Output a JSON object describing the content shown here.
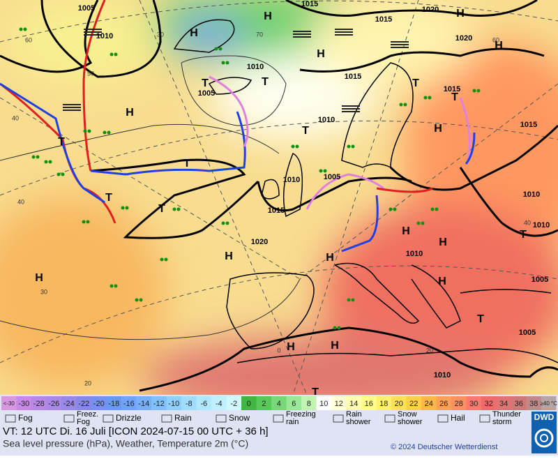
{
  "map": {
    "isobar_labels": [
      "1005",
      "1010",
      "1015",
      "1015",
      "1020",
      "1020",
      "1010",
      "1015",
      "1005",
      "1015",
      "1010",
      "1015",
      "1010",
      "1005",
      "1015",
      "1010",
      "1010",
      "1020",
      "1010",
      "1005",
      "1005",
      "1010"
    ],
    "pressure_centers": [
      "H",
      "H",
      "H",
      "H",
      "H",
      "H",
      "H",
      "H",
      "H",
      "H",
      "H",
      "H",
      "H",
      "H",
      "H",
      "T",
      "T",
      "T",
      "T",
      "T",
      "T",
      "T",
      "T",
      "T",
      "T",
      "T",
      "T"
    ],
    "isotherm_labels": [
      "60",
      "50",
      "40",
      "30",
      "20",
      "0",
      "20",
      "30",
      "40",
      "60",
      "40",
      "70"
    ]
  },
  "legend": {
    "scale": [
      {
        "label": "<-30",
        "color": "#d898e0"
      },
      {
        "label": "-30",
        "color": "#c888e8"
      },
      {
        "label": "-28",
        "color": "#b888e8"
      },
      {
        "label": "-26",
        "color": "#a888e8"
      },
      {
        "label": "-24",
        "color": "#9888e8"
      },
      {
        "label": "-22",
        "color": "#8888e8"
      },
      {
        "label": "-20",
        "color": "#7890f0"
      },
      {
        "label": "-18",
        "color": "#6898f0"
      },
      {
        "label": "-16",
        "color": "#70a4f8"
      },
      {
        "label": "-14",
        "color": "#78b0f8"
      },
      {
        "label": "-12",
        "color": "#80c0ff"
      },
      {
        "label": "-10",
        "color": "#90d0ff"
      },
      {
        "label": "-8",
        "color": "#a0dcff"
      },
      {
        "label": "-6",
        "color": "#b0e8ff"
      },
      {
        "label": "-4",
        "color": "#c0f0ff"
      },
      {
        "label": "-2",
        "color": "#d0f8ff"
      },
      {
        "label": "0",
        "color": "#40b840"
      },
      {
        "label": "2",
        "color": "#58c858"
      },
      {
        "label": "4",
        "color": "#78d878"
      },
      {
        "label": "6",
        "color": "#98e898"
      },
      {
        "label": "8",
        "color": "#c0f4b0"
      },
      {
        "label": "10",
        "color": "#ffffff"
      },
      {
        "label": "12",
        "color": "#ffffd8"
      },
      {
        "label": "14",
        "color": "#ffffb0"
      },
      {
        "label": "16",
        "color": "#ffff88"
      },
      {
        "label": "18",
        "color": "#fff070"
      },
      {
        "label": "20",
        "color": "#ffe058"
      },
      {
        "label": "22",
        "color": "#ffd048"
      },
      {
        "label": "24",
        "color": "#ffb848"
      },
      {
        "label": "26",
        "color": "#ffa058"
      },
      {
        "label": "28",
        "color": "#ff9060"
      },
      {
        "label": "30",
        "color": "#ff7870"
      },
      {
        "label": "32",
        "color": "#f06c6c"
      },
      {
        "label": "34",
        "color": "#e07474"
      },
      {
        "label": "36",
        "color": "#d07878"
      },
      {
        "label": "38",
        "color": "#c08a8a"
      },
      {
        "label": "≥40 °C",
        "color": "#b4a4a4"
      }
    ],
    "symbols": [
      {
        "lines": [
          "Fog"
        ]
      },
      {
        "lines": [
          "Freez.",
          "Fog"
        ]
      },
      {
        "lines": [
          "Drizzle"
        ]
      },
      {
        "lines": [
          "Rain"
        ]
      },
      {
        "lines": [
          "Snow"
        ]
      },
      {
        "lines": [
          "Freezing",
          "rain"
        ]
      },
      {
        "lines": [
          "Rain",
          "shower"
        ]
      },
      {
        "lines": [
          "Snow",
          "shower"
        ]
      },
      {
        "lines": [
          "Hail"
        ]
      },
      {
        "lines": [
          "Thunder",
          "storm"
        ]
      }
    ],
    "valid_time": "VT: 12 UTC Di.  16 Juli [ICON 2024-07-15  00 UTC + 36 h]",
    "description": "Sea level pressure (hPa), Weather, Temperature 2m (°C)",
    "copyright": "© 2024 Deutscher Wetterdienst",
    "logo": "DWD"
  }
}
